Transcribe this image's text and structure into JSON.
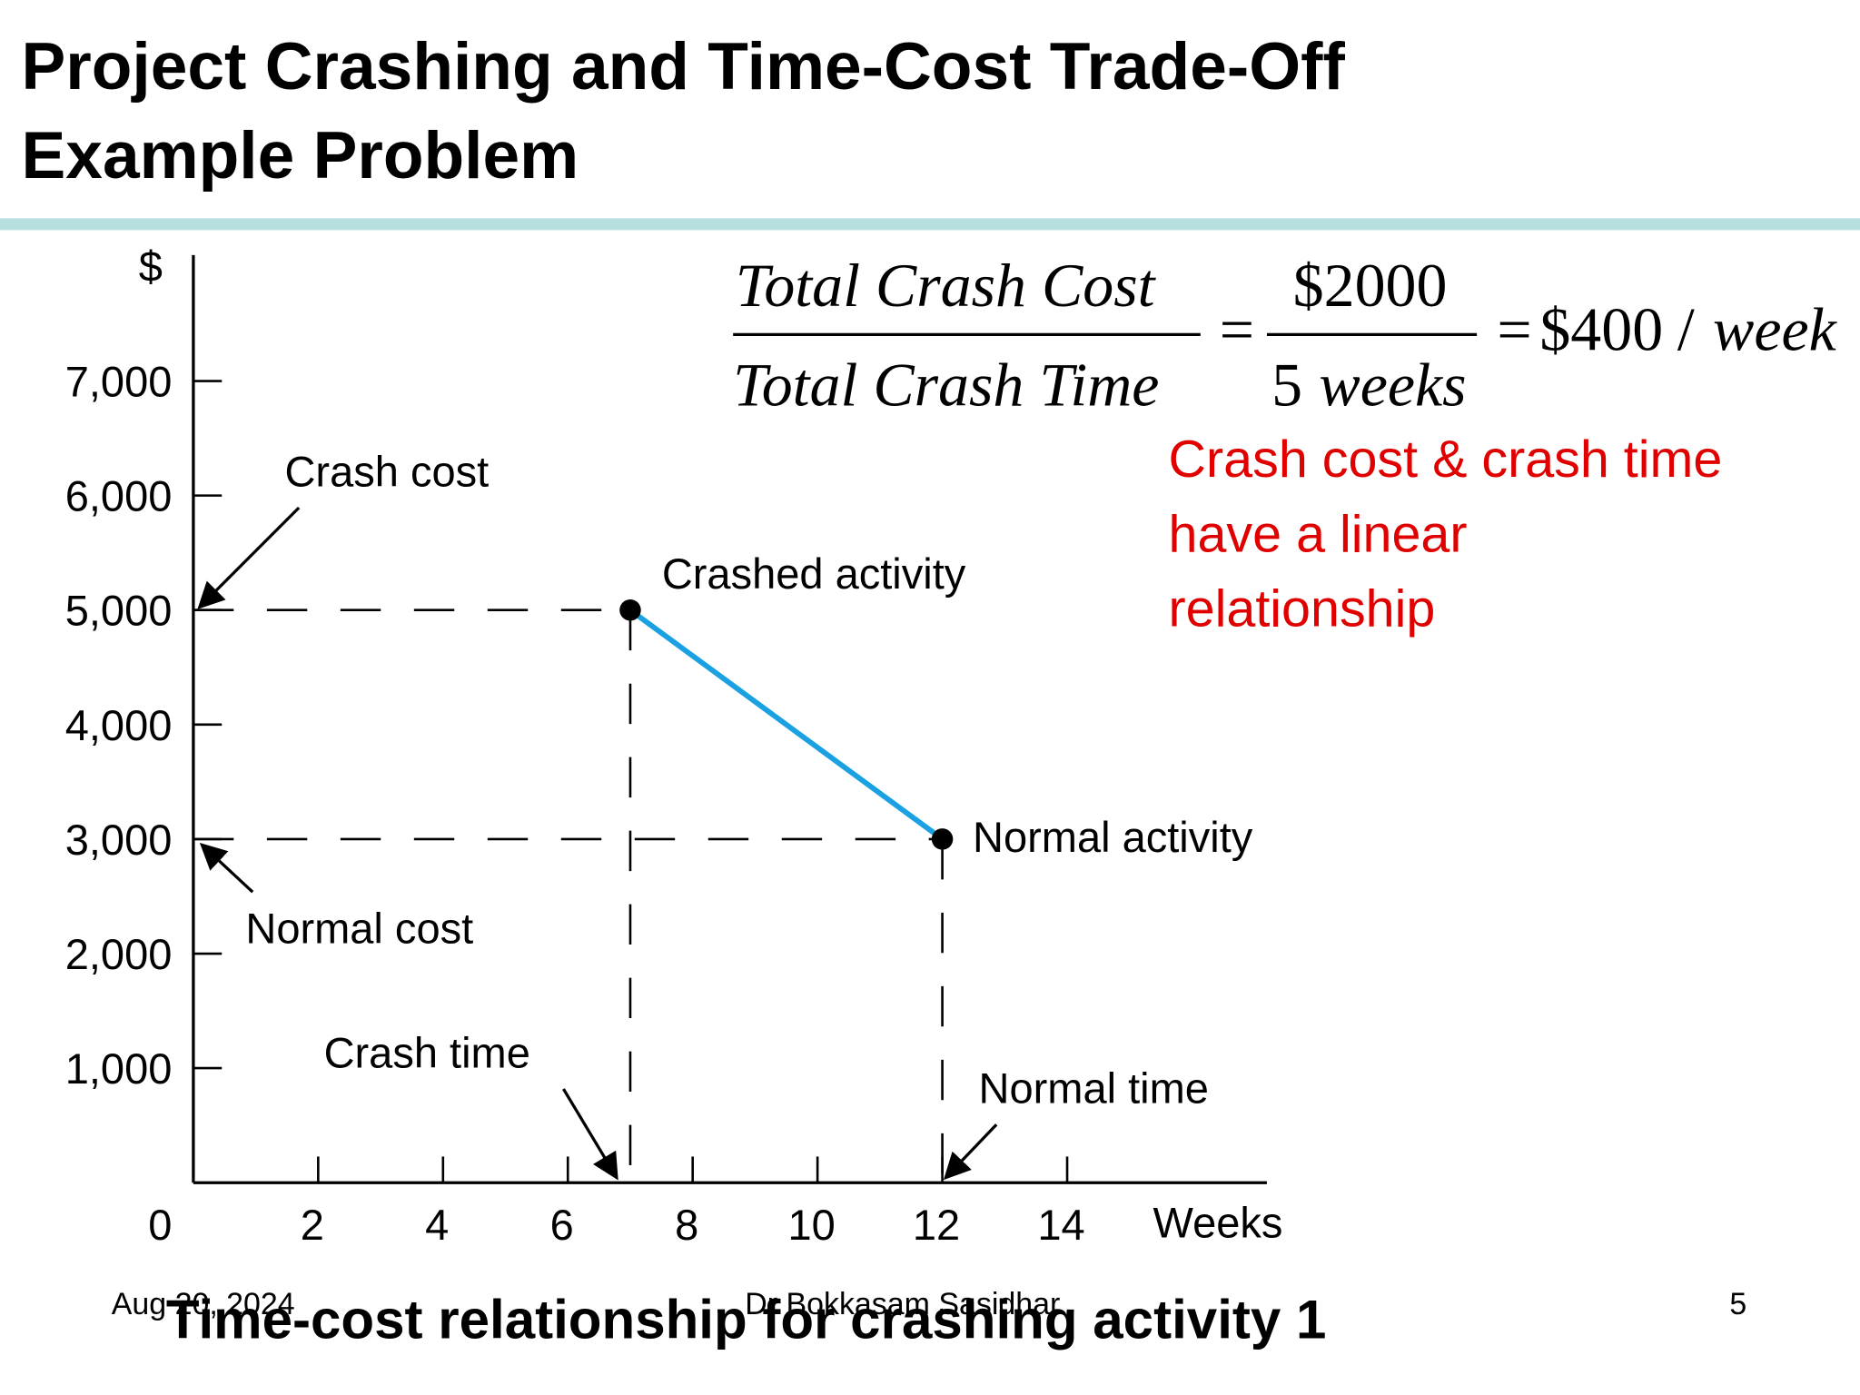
{
  "slide": {
    "title_lines": [
      "Project Crashing and Time-Cost Trade-Off",
      "Example Problem"
    ],
    "formula": {
      "numerator": "Total Crash Cost",
      "denominator": "Total Crash Time",
      "eq": "=",
      "numerator2": "$2000",
      "denominator2_num": "5",
      "denominator2_unit": "weeks",
      "result": "$400",
      "slash": "/",
      "result_unit": "week"
    },
    "note_lines": [
      "Crash cost & crash time",
      "have a linear",
      "relationship"
    ],
    "caption": "Time-cost relationship for crashing activity 1",
    "footer": {
      "date": "Aug 20, 2024",
      "author": "Dr Bokkasam Sasidhar",
      "page": "5"
    }
  },
  "chart_data": {
    "type": "line",
    "y_label": "$",
    "x_label": "Weeks",
    "x": [
      7,
      12
    ],
    "series": [
      {
        "name": "Activity 1",
        "color": "#1ba1e2",
        "values": [
          5000,
          3000
        ]
      }
    ],
    "xlim": [
      0,
      17.2
    ],
    "ylim": [
      0,
      8100
    ],
    "xticks": [
      0,
      2,
      4,
      6,
      8,
      10,
      12,
      14
    ],
    "yticks": [
      {
        "value": 1000,
        "label": "1,000"
      },
      {
        "value": 2000,
        "label": "2,000"
      },
      {
        "value": 3000,
        "label": "3,000"
      },
      {
        "value": 4000,
        "label": "4,000"
      },
      {
        "value": 5000,
        "label": "5,000"
      },
      {
        "value": 6000,
        "label": "6,000"
      },
      {
        "value": 7000,
        "label": "7,000"
      }
    ],
    "annotations": [
      "Crash cost",
      "Crashed activity",
      "Normal activity",
      "Normal cost",
      "Crash time",
      "Normal time"
    ]
  }
}
